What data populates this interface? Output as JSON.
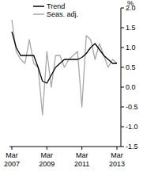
{
  "chart_data": {
    "type": "line",
    "y_label": "%",
    "categories": [
      "Mar 2007",
      null,
      null,
      null,
      null,
      null,
      null,
      null,
      "Mar 2009",
      null,
      null,
      null,
      null,
      null,
      null,
      null,
      "Mar 2011",
      null,
      null,
      null,
      null,
      null,
      null,
      null,
      "Mar 2013"
    ],
    "series": [
      {
        "name": "Trend",
        "color": "#000000",
        "values": [
          1.4,
          1.0,
          0.8,
          0.8,
          0.8,
          0.8,
          0.5,
          0.15,
          0.1,
          0.3,
          0.5,
          0.6,
          0.7,
          0.7,
          0.7,
          0.7,
          0.75,
          0.85,
          1.0,
          1.1,
          0.95,
          0.8,
          0.7,
          0.6,
          0.6
        ]
      },
      {
        "name": "Seas. adj.",
        "color": "#a6a6a6",
        "values": [
          1.7,
          0.9,
          0.7,
          0.6,
          1.2,
          0.6,
          0.5,
          -0.7,
          0.9,
          0.0,
          0.8,
          0.8,
          0.5,
          0.7,
          0.8,
          0.9,
          -0.5,
          1.3,
          1.2,
          0.7,
          1.1,
          0.8,
          0.5,
          0.7,
          0.6
        ]
      }
    ],
    "ylim": [
      -1.5,
      2.0
    ],
    "yticks": [
      -1.5,
      -1.0,
      -0.5,
      0,
      0.5,
      1.0,
      1.5,
      2.0
    ],
    "ytick_labels": [
      "-1.5",
      "-1.0",
      "-0.5",
      "0.0",
      "0.5",
      "1.0",
      "1.5",
      "2.0"
    ],
    "legend": "top-left",
    "grid": false
  }
}
